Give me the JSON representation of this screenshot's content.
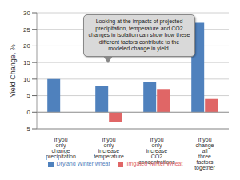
{
  "chart_data": {
    "type": "bar",
    "annotation": "Looking at the impacts of projected precipitation, temperature and CO2 changes in isolation can show how these different factors contribute to the modeled change in yield.",
    "y_label": "Yield Change, %",
    "categories": [
      "If you only change precipitation",
      "If you only increase temperature",
      "If you only increase CO2 concentrations",
      "If you change all three factors together"
    ],
    "series": [
      {
        "name": "Dryland Winter wheat",
        "color": "#4f81bd",
        "values": [
          10,
          8,
          9,
          27
        ]
      },
      {
        "name": "Irrigated Winter Wheat",
        "color": "#e06666",
        "values": [
          0,
          -3,
          7,
          4
        ]
      }
    ],
    "ylim": [
      -5,
      30
    ],
    "yticks": [
      -5,
      0,
      5,
      10,
      15,
      20,
      25,
      30
    ],
    "grid": true,
    "legend": "bottom"
  }
}
